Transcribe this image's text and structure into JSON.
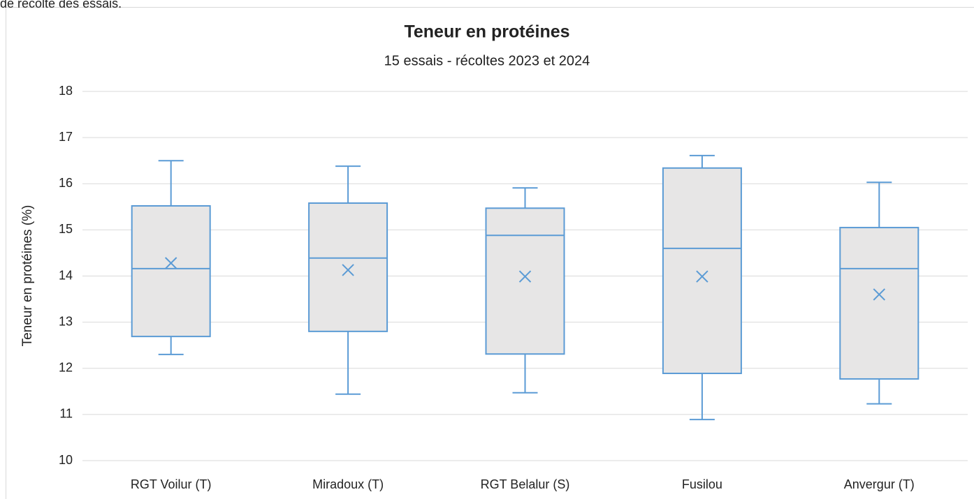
{
  "caption": "de récolte des essais.",
  "chart_data": {
    "type": "box",
    "title": "Teneur en protéines",
    "subtitle": "15 essais - récoltes 2023 et 2024",
    "ylabel": "Teneur en protéines (%)",
    "categories": [
      "RGT Voilur (T)",
      "Miradoux (T)",
      "RGT Belalur (S)",
      "Fusilou",
      "Anvergur (T)"
    ],
    "boxes": [
      {
        "min": 12.3,
        "q1": 12.69,
        "median": 14.16,
        "q3": 15.52,
        "max": 16.5,
        "mean": 14.28
      },
      {
        "min": 11.44,
        "q1": 12.8,
        "median": 14.39,
        "q3": 15.58,
        "max": 16.38,
        "mean": 14.13
      },
      {
        "min": 11.47,
        "q1": 12.31,
        "median": 14.88,
        "q3": 15.47,
        "max": 15.91,
        "mean": 13.99
      },
      {
        "min": 10.89,
        "q1": 11.89,
        "median": 14.6,
        "q3": 16.34,
        "max": 16.61,
        "mean": 13.99
      },
      {
        "min": 11.23,
        "q1": 11.77,
        "median": 14.16,
        "q3": 15.05,
        "max": 16.03,
        "mean": 13.6
      }
    ],
    "color": "#5b9bd5",
    "box_fill": "#e7e6e6",
    "ylim": [
      10,
      18
    ],
    "yticks": [
      10,
      11,
      12,
      13,
      14,
      15,
      16,
      17,
      18
    ],
    "grid": true
  }
}
